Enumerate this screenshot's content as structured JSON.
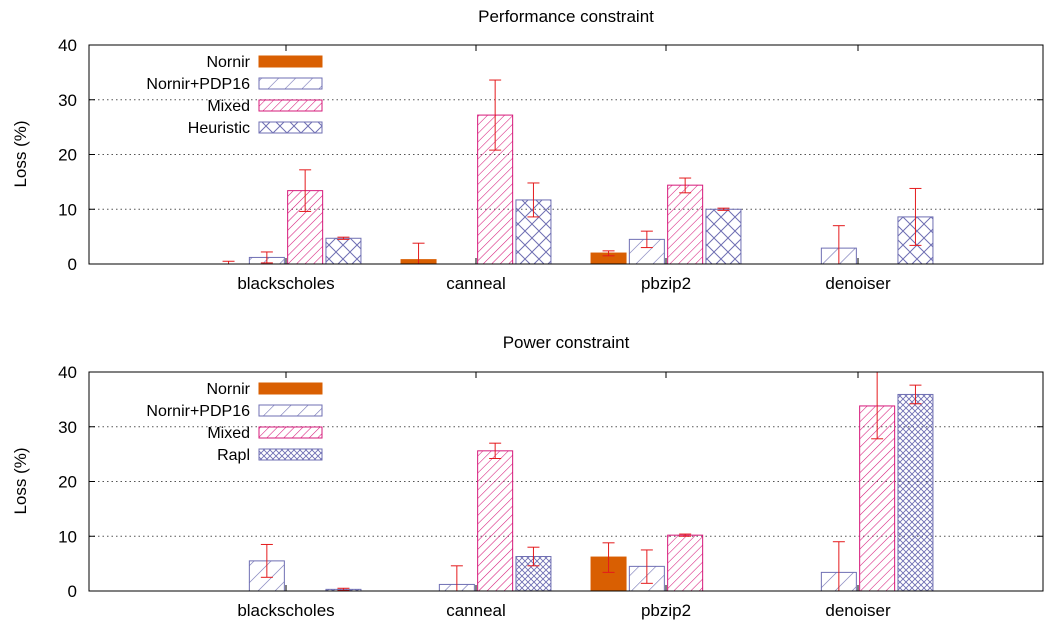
{
  "colors": {
    "nornir": "#d95f02",
    "pdp16": "#6f6fb3",
    "mixed": "#d6197a",
    "heuristic": "#6f6fb3",
    "errorbar": "#e41a1c",
    "grid": "#555555"
  },
  "chart_data": [
    {
      "type": "bar",
      "title": "Performance constraint",
      "ylabel": "Loss (%)",
      "ylim": [
        0,
        40
      ],
      "yticks": [
        0,
        10,
        20,
        30,
        40
      ],
      "grid": "horizontal dotted",
      "legend_position": "top-left",
      "categories": [
        "blackscholes",
        "canneal",
        "pbzip2",
        "denoiser"
      ],
      "series": [
        {
          "name": "Nornir",
          "pattern": "solid",
          "values": [
            0,
            0.8,
            2.0,
            0
          ],
          "err_low": [
            0,
            0,
            1.5,
            0
          ],
          "err_high": [
            0.5,
            3.8,
            2.4,
            0
          ]
        },
        {
          "name": "Nornir+PDP16",
          "pattern": "diag",
          "values": [
            1.2,
            0,
            4.5,
            2.9
          ],
          "err_low": [
            0.2,
            0,
            3.0,
            0
          ],
          "err_high": [
            2.2,
            0,
            6.0,
            7.0
          ]
        },
        {
          "name": "Mixed",
          "pattern": "dense-diag",
          "values": [
            13.4,
            27.2,
            14.4,
            0
          ],
          "err_low": [
            9.6,
            20.8,
            13.0,
            0
          ],
          "err_high": [
            17.2,
            33.6,
            15.7,
            0
          ]
        },
        {
          "name": "Heuristic",
          "pattern": "crosshatch",
          "values": [
            4.7,
            11.7,
            10.0,
            8.6
          ],
          "err_low": [
            4.5,
            8.6,
            9.8,
            3.4
          ],
          "err_high": [
            4.9,
            14.8,
            10.2,
            13.8
          ]
        }
      ]
    },
    {
      "type": "bar",
      "title": "Power constraint",
      "ylabel": "Loss (%)",
      "ylim": [
        0,
        40
      ],
      "yticks": [
        0,
        10,
        20,
        30,
        40
      ],
      "grid": "horizontal dotted",
      "legend_position": "top-left",
      "categories": [
        "blackscholes",
        "canneal",
        "pbzip2",
        "denoiser"
      ],
      "series": [
        {
          "name": "Nornir",
          "pattern": "solid",
          "values": [
            0,
            0,
            6.2,
            0
          ],
          "err_low": [
            0,
            0,
            3.4,
            0
          ],
          "err_high": [
            0,
            0,
            8.8,
            0
          ]
        },
        {
          "name": "Nornir+PDP16",
          "pattern": "diag",
          "values": [
            5.5,
            1.2,
            4.5,
            3.4
          ],
          "err_low": [
            2.5,
            0,
            1.4,
            0
          ],
          "err_high": [
            8.5,
            4.6,
            7.5,
            9.0
          ]
        },
        {
          "name": "Mixed",
          "pattern": "dense-diag",
          "values": [
            0,
            25.6,
            10.2,
            33.8
          ],
          "err_low": [
            0,
            24.2,
            10.0,
            27.8
          ],
          "err_high": [
            0,
            27.0,
            10.4,
            40.0
          ]
        },
        {
          "name": "Rapl",
          "pattern": "dense-cross",
          "values": [
            0.3,
            6.3,
            0,
            35.9
          ],
          "err_low": [
            0.1,
            4.6,
            0,
            34.2
          ],
          "err_high": [
            0.5,
            8.0,
            0,
            37.6
          ]
        }
      ]
    }
  ]
}
